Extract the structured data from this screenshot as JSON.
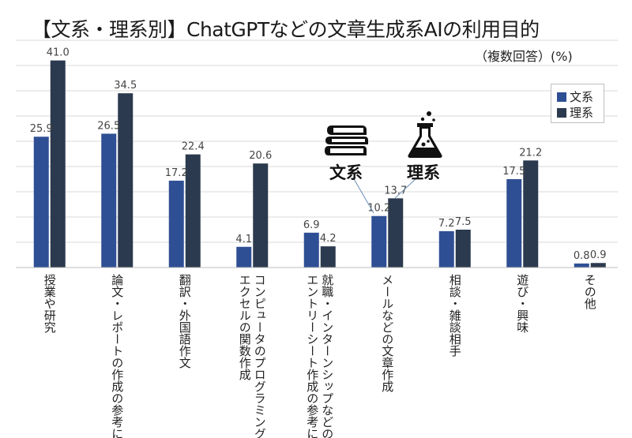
{
  "chart_data": {
    "type": "bar",
    "title": "【文系・理系別】ChatGPTなどの文章生成系AIの利用目的",
    "subtitle": "（複数回答）(%)",
    "categories": [
      "授業や研究",
      "論文・レポートの作成の参考に",
      "翻訳・外国語作文",
      "コンピュータのプログラミング、エクセルの関数作成",
      "就職・インターンシップなどのエントリーシート作成の参考に",
      "メールなどの文章作成",
      "相談・雑談相手",
      "遊び・興味",
      "その他"
    ],
    "category_lines": [
      [
        "授業や研究"
      ],
      [
        "論文・レポートの作成の参考に"
      ],
      [
        "翻訳・外国語作文"
      ],
      [
        "コンピュータのプログラミング、",
        "エクセルの関数作成"
      ],
      [
        "就職・インターンシップなどの",
        "エントリーシート作成の参考に"
      ],
      [
        "メールなどの文章作成"
      ],
      [
        "相談・雑談相手"
      ],
      [
        "遊び・興味"
      ],
      [
        "その他"
      ]
    ],
    "series": [
      {
        "name": "文系",
        "color": "#2f4f94",
        "values": [
          25.9,
          26.5,
          17.2,
          4.1,
          6.9,
          10.2,
          7.2,
          17.5,
          0.8
        ]
      },
      {
        "name": "理系",
        "color": "#2b3a4e",
        "values": [
          41.0,
          34.5,
          22.4,
          20.6,
          4.2,
          13.7,
          7.5,
          21.2,
          0.9
        ]
      }
    ],
    "ylim": [
      0,
      45
    ],
    "ytick_step": 5,
    "grid": true,
    "legend_position": "top-right",
    "annotations": [
      {
        "label": "文系",
        "icon": "books-icon"
      },
      {
        "label": "理系",
        "icon": "flask-icon"
      }
    ]
  }
}
